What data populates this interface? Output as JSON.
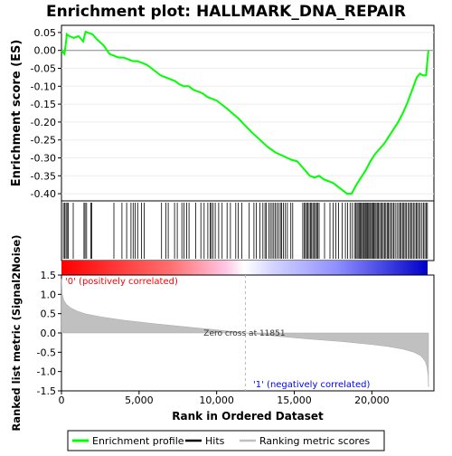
{
  "chart_data": {
    "type": "line",
    "title": "Enrichment plot: HALLMARK_DNA_REPAIR",
    "xlabel": "Rank in Ordered Dataset",
    "x_ticks": [
      "0",
      "5,000",
      "10,000",
      "15,000",
      "20,000"
    ],
    "x_tick_values": [
      0,
      5000,
      10000,
      15000,
      20000
    ],
    "xlim": [
      0,
      24000
    ],
    "es_panel": {
      "ylabel": "Enrichment score (ES)",
      "ylim": [
        -0.42,
        0.07
      ],
      "y_ticks": [
        "0.05",
        "0.00",
        "-0.05",
        "-0.10",
        "-0.15",
        "-0.20",
        "-0.25",
        "-0.30",
        "-0.35",
        "-0.40"
      ],
      "y_tick_values": [
        0.05,
        0.0,
        -0.05,
        -0.1,
        -0.15,
        -0.2,
        -0.25,
        -0.3,
        -0.35,
        -0.4
      ],
      "line_color": "#00ff00",
      "series": {
        "name": "Enrichment profile",
        "x": [
          0,
          200,
          350,
          500,
          800,
          1100,
          1400,
          1550,
          1800,
          2000,
          2300,
          2700,
          3100,
          3400,
          3700,
          4000,
          4300,
          4600,
          4900,
          5200,
          5500,
          5800,
          6100,
          6400,
          6700,
          7000,
          7300,
          7600,
          7900,
          8200,
          8500,
          8800,
          9100,
          9400,
          9700,
          10000,
          10300,
          10600,
          11000,
          11400,
          11851,
          12300,
          12800,
          13300,
          13800,
          14300,
          14800,
          15200,
          15600,
          16000,
          16300,
          16600,
          16900,
          17200,
          17500,
          17800,
          18100,
          18400,
          18700,
          19000,
          19300,
          19600,
          19900,
          20200,
          20500,
          20800,
          21100,
          21400,
          21700,
          22000,
          22300,
          22600,
          22900,
          23100,
          23300,
          23500,
          23600,
          23650
        ],
        "y": [
          0.0,
          -0.01,
          0.045,
          0.04,
          0.035,
          0.04,
          0.025,
          0.052,
          0.048,
          0.045,
          0.03,
          0.015,
          -0.01,
          -0.015,
          -0.02,
          -0.02,
          -0.025,
          -0.03,
          -0.03,
          -0.035,
          -0.04,
          -0.05,
          -0.06,
          -0.07,
          -0.075,
          -0.08,
          -0.085,
          -0.095,
          -0.1,
          -0.1,
          -0.11,
          -0.115,
          -0.12,
          -0.13,
          -0.135,
          -0.14,
          -0.15,
          -0.16,
          -0.175,
          -0.19,
          -0.21,
          -0.23,
          -0.25,
          -0.27,
          -0.285,
          -0.295,
          -0.305,
          -0.31,
          -0.33,
          -0.35,
          -0.355,
          -0.35,
          -0.36,
          -0.365,
          -0.37,
          -0.38,
          -0.39,
          -0.4,
          -0.4,
          -0.375,
          -0.355,
          -0.335,
          -0.31,
          -0.29,
          -0.275,
          -0.26,
          -0.24,
          -0.22,
          -0.2,
          -0.175,
          -0.145,
          -0.11,
          -0.075,
          -0.065,
          -0.07,
          -0.07,
          -0.02,
          0.0
        ]
      }
    },
    "hits_panel": {
      "hit_ranks": [
        120,
        200,
        290,
        360,
        430,
        760,
        1450,
        1520,
        1620,
        1890,
        1960,
        3380,
        3900,
        4200,
        4480,
        4620,
        4740,
        4910,
        5150,
        5330,
        6450,
        6730,
        6880,
        7290,
        7460,
        7760,
        7900,
        8070,
        8220,
        8650,
        8980,
        9190,
        9430,
        9580,
        9660,
        9770,
        9910,
        10130,
        10350,
        10670,
        10890,
        11230,
        11380,
        11620,
        12100,
        12400,
        12560,
        12780,
        12980,
        13110,
        13190,
        13350,
        13460,
        13570,
        13680,
        13780,
        13880,
        13990,
        14110,
        14190,
        14300,
        14430,
        14560,
        14780,
        14900,
        15550,
        15640,
        15720,
        15800,
        15870,
        15960,
        16040,
        16120,
        16200,
        16290,
        16370,
        16440,
        16520,
        16600,
        16950,
        17300,
        17500,
        17680,
        17850,
        18080,
        18300,
        18440,
        18600,
        18740,
        18880,
        18960,
        19040,
        19110,
        19180,
        19250,
        19320,
        19390,
        19460,
        19520,
        19590,
        19650,
        19720,
        19790,
        19860,
        19920,
        19990,
        20060,
        20130,
        20200,
        20270,
        20350,
        20420,
        20500,
        20580,
        20660,
        20740,
        20820,
        20900,
        20990,
        21060,
        21140,
        21230,
        21320,
        21410,
        21500,
        21620,
        21720,
        21810,
        21890,
        21980,
        22060,
        22140,
        22230,
        22330,
        22420,
        22500,
        22590,
        22680,
        22770,
        22860,
        22940,
        23030,
        23120,
        23230,
        23330,
        23420,
        23500,
        23580
      ]
    },
    "metric_panel": {
      "ylabel": "Ranked list metric (Signal2Noise)",
      "ylim": [
        -1.5,
        1.5
      ],
      "y_ticks": [
        "1.5",
        "1.0",
        "0.5",
        "0.0",
        "-0.5",
        "-1.0",
        "-1.5"
      ],
      "y_tick_values": [
        1.5,
        1.0,
        0.5,
        0.0,
        -0.5,
        -1.0,
        -1.5
      ],
      "zero_cross_label": "Zero cross at 11851",
      "zero_cross_rank": 11851,
      "positive_label": "'0' (positively correlated)",
      "negative_label": "'1' (negatively correlated)",
      "positive_label_color": "#ff0000",
      "negative_label_color": "#0000ff",
      "fill_color": "#c0c0c0",
      "profile": {
        "x": [
          0,
          50,
          150,
          300,
          600,
          1000,
          1500,
          2500,
          4000,
          6000,
          8000,
          10000,
          11851,
          14000,
          16000,
          18000,
          20000,
          21000,
          22000,
          22700,
          23100,
          23300,
          23450,
          23550,
          23620,
          23650
        ],
        "y": [
          1.4,
          1.0,
          0.85,
          0.75,
          0.65,
          0.57,
          0.5,
          0.42,
          0.33,
          0.24,
          0.16,
          0.08,
          0.0,
          -0.09,
          -0.16,
          -0.22,
          -0.3,
          -0.35,
          -0.42,
          -0.5,
          -0.58,
          -0.66,
          -0.75,
          -0.88,
          -1.1,
          -1.4
        ]
      }
    },
    "legend": {
      "position": "bottom",
      "entries": [
        {
          "label": "Enrichment profile",
          "color": "#00ff00"
        },
        {
          "label": "Hits",
          "color": "#000000"
        },
        {
          "label": "Ranking metric scores",
          "color": "#c0c0c0"
        }
      ]
    }
  }
}
